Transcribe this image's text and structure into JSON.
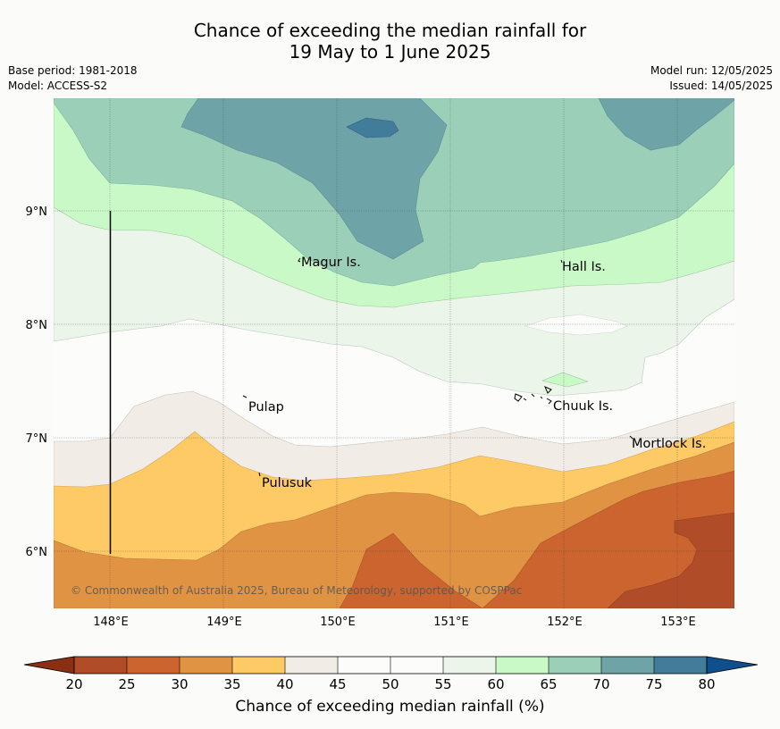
{
  "title": {
    "line1": "Chance of exceeding the median rainfall for",
    "line2": "19 May to 1 June 2025"
  },
  "meta": {
    "base_period": "Base period: 1981-2018",
    "model": "Model: ACCESS-S2",
    "model_run": "Model run: 12/05/2025",
    "issued": "Issued: 14/05/2025"
  },
  "map": {
    "lon_ticks": [
      "148°E",
      "149°E",
      "150°E",
      "151°E",
      "152°E",
      "153°E"
    ],
    "lat_ticks": [
      "9°N",
      "8°N",
      "7°N",
      "6°N"
    ],
    "places": [
      "Magur Is.",
      "Hall Is.",
      "Pulap",
      "Chuuk Is.",
      "Mortlock Is.",
      "Pulusuk"
    ],
    "copyright": "© Commonwealth of Australia 2025, Bureau of Meteorology, supported by COSPPac"
  },
  "colorbar": {
    "ticks": [
      "20",
      "25",
      "30",
      "35",
      "40",
      "45",
      "50",
      "55",
      "60",
      "65",
      "70",
      "75",
      "80"
    ],
    "title": "Chance of exceeding median rainfall (%)",
    "colors": {
      "below_20": "#8a2e14",
      "20_25": "#b04c28",
      "25_30": "#cc642f",
      "30_35": "#e09443",
      "35_40": "#fdca66",
      "40_45": "#f1ece6",
      "45_50": "#fcfdfb",
      "50_55": "#fcfdfb",
      "55_60": "#ebf5ea",
      "60_65": "#caf9c8",
      "65_70": "#9ccfb8",
      "70_75": "#6ea4a7",
      "75_80": "#417d9b",
      "above_80": "#0f4f8e"
    }
  }
}
